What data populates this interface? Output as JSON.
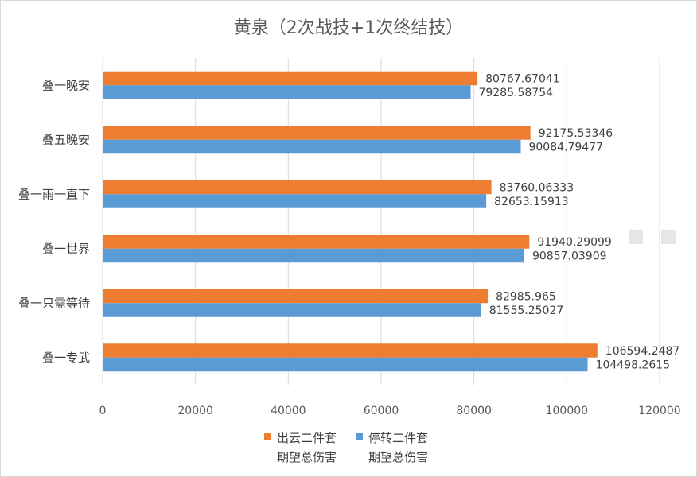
{
  "chart_data": {
    "type": "bar",
    "orientation": "horizontal",
    "title": "黄泉（2次战技+1次终结技）",
    "categories": [
      "叠一晚安",
      "叠五晚安",
      "叠一雨一直下",
      "叠一世界",
      "叠一只需等待",
      "叠一专武"
    ],
    "series": [
      {
        "name": "出云二件套期望总伤害",
        "name_lines": [
          "出云二件套",
          "期望总伤害"
        ],
        "color": "#ed7d31",
        "values": [
          80767.67041,
          92175.53346,
          83760.06333,
          91940.29099,
          82985.965,
          106594.2487
        ],
        "labels": [
          "80767.67041",
          "92175.53346",
          "83760.06333",
          "91940.29099",
          "82985.965",
          "106594.2487"
        ]
      },
      {
        "name": "停转二件套期望总伤害",
        "name_lines": [
          "停转二件套",
          "期望总伤害"
        ],
        "color": "#5b9bd5",
        "values": [
          79285.58754,
          90084.79477,
          82653.15913,
          90857.03909,
          81555.25027,
          104498.2615
        ],
        "labels": [
          "79285.58754",
          "90084.79477",
          "82653.15913",
          "90857.03909",
          "81555.25027",
          "104498.2615"
        ]
      }
    ],
    "xlim": [
      0,
      120000
    ],
    "xticks": [
      "0",
      "20000",
      "40000",
      "60000",
      "80000",
      "100000",
      "120000"
    ],
    "grid": true,
    "legend_position": "bottom"
  }
}
